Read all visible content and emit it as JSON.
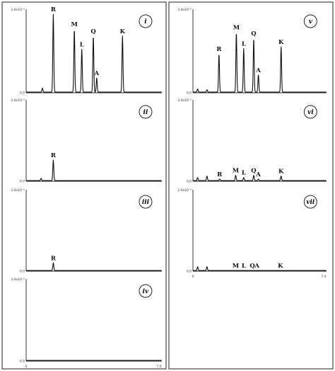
{
  "chart_data": [
    {
      "type": "line",
      "panel": "i",
      "column": "left",
      "ylabel_top": "3.0e10⁻⁶",
      "ylabel_zero": "0.0",
      "peaks": [
        {
          "label": "R",
          "x": 40,
          "h": 1.0
        },
        {
          "label": "M",
          "x": 71,
          "h": 0.81
        },
        {
          "label": "L",
          "x": 82,
          "h": 0.55
        },
        {
          "label": "Q",
          "x": 99,
          "h": 0.72
        },
        {
          "label": "A",
          "x": 104,
          "h": 0.18
        },
        {
          "label": "K",
          "x": 142,
          "h": 0.72
        }
      ],
      "minor": [
        {
          "x": 24,
          "h": 0.05
        }
      ]
    },
    {
      "type": "line",
      "panel": "ii",
      "column": "left",
      "ylabel_top": "3.0e10⁻⁶",
      "ylabel_zero": "0.0",
      "peaks": [
        {
          "label": "R",
          "x": 40,
          "h": 0.27
        }
      ],
      "minor": [
        {
          "x": 22,
          "h": 0.03
        }
      ]
    },
    {
      "type": "line",
      "panel": "iii",
      "column": "left",
      "ylabel_top": "3.0e10⁻⁶",
      "ylabel_zero": "0.0",
      "peaks": [
        {
          "label": "R",
          "x": 40,
          "h": 0.1
        }
      ],
      "minor": []
    },
    {
      "type": "line",
      "panel": "iv",
      "column": "left",
      "ylabel_top": "3.0e10⁻⁶",
      "ylabel_zero": "0.0",
      "x_tick_start": "0",
      "x_tick_end": "7.0",
      "peaks": [],
      "minor": []
    },
    {
      "type": "line",
      "panel": "v",
      "column": "right",
      "ylabel_top": "3.0e10⁻⁶",
      "ylabel_zero": "0.0",
      "peaks": [
        {
          "label": "R",
          "x": 39,
          "h": 0.49
        },
        {
          "label": "M",
          "x": 65,
          "h": 0.77
        },
        {
          "label": "L",
          "x": 76,
          "h": 0.56
        },
        {
          "label": "Q",
          "x": 91,
          "h": 0.69
        },
        {
          "label": "A",
          "x": 98,
          "h": 0.22
        },
        {
          "label": "K",
          "x": 132,
          "h": 0.58
        }
      ],
      "minor": [
        {
          "x": 7,
          "h": 0.04
        },
        {
          "x": 21,
          "h": 0.03
        }
      ]
    },
    {
      "type": "line",
      "panel": "vi",
      "column": "right",
      "ylabel_top": "3.0e10⁻⁶",
      "ylabel_zero": "0.0",
      "peaks": [
        {
          "label": "R",
          "x": 40,
          "h": 0.02
        },
        {
          "label": "M",
          "x": 64,
          "h": 0.07
        },
        {
          "label": "L",
          "x": 76,
          "h": 0.04
        },
        {
          "label": "Q",
          "x": 91,
          "h": 0.07
        },
        {
          "label": "A",
          "x": 98,
          "h": 0.02
        },
        {
          "label": "K",
          "x": 132,
          "h": 0.06
        }
      ],
      "minor": [
        {
          "x": 7,
          "h": 0.04
        },
        {
          "x": 21,
          "h": 0.06
        }
      ]
    },
    {
      "type": "line",
      "panel": "vii",
      "column": "right",
      "ylabel_top": "3.0e10⁻⁶",
      "ylabel_zero": "0.0",
      "x_tick_start": "0",
      "x_tick_end": "7.0",
      "peaks": [
        {
          "label": "M",
          "x": 64,
          "h": 0.0
        },
        {
          "label": "L",
          "x": 76,
          "h": 0.0
        },
        {
          "label": "Q",
          "x": 89,
          "h": 0.0
        },
        {
          "label": "A",
          "x": 96,
          "h": 0.0
        },
        {
          "label": "K",
          "x": 131,
          "h": 0.0
        }
      ],
      "minor": [
        {
          "x": 7,
          "h": 0.05
        },
        {
          "x": 21,
          "h": 0.05
        }
      ]
    }
  ]
}
